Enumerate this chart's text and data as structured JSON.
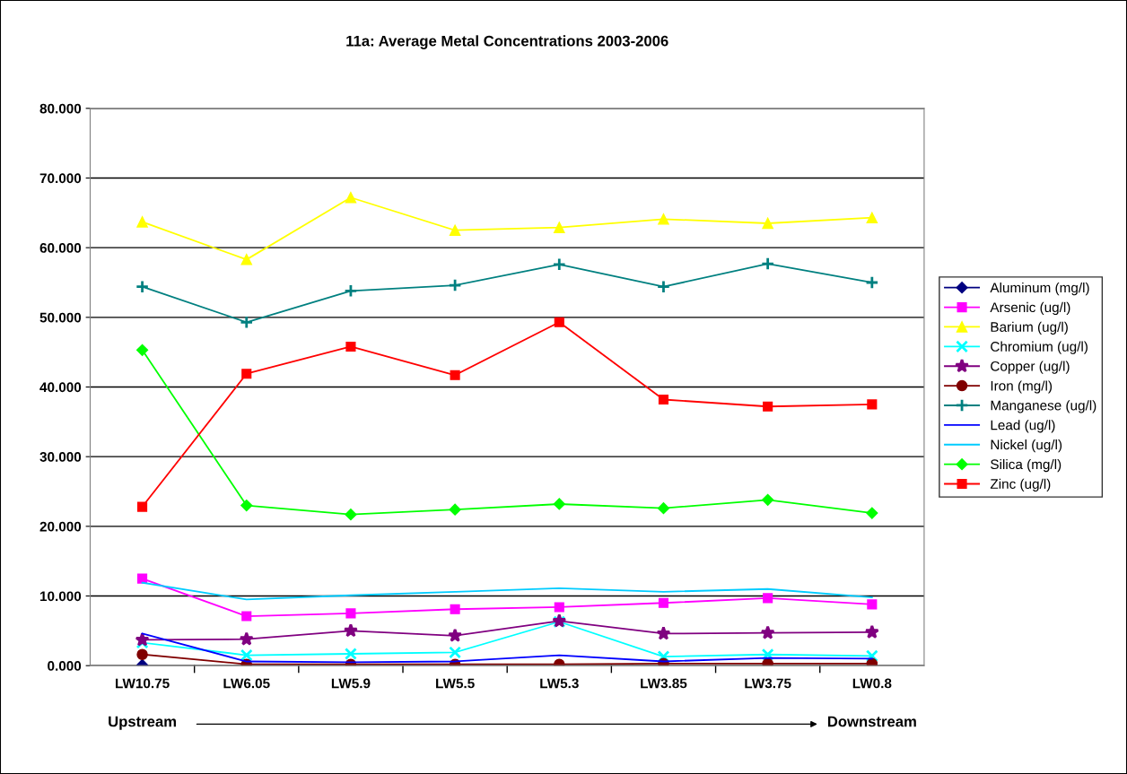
{
  "chart_data": {
    "type": "line",
    "title": "11a: Average Metal Concentrations 2003-2006",
    "categories": [
      "LW10.75",
      "LW6.05",
      "LW5.9",
      "LW5.5",
      "LW5.3",
      "LW3.85",
      "LW3.75",
      "LW0.8"
    ],
    "ylim": [
      0,
      80
    ],
    "yticks": [
      {
        "value": 0,
        "label": "0.000"
      },
      {
        "value": 10,
        "label": "10.000"
      },
      {
        "value": 20,
        "label": "20.000"
      },
      {
        "value": 30,
        "label": "30.000"
      },
      {
        "value": 40,
        "label": "40.000"
      },
      {
        "value": 50,
        "label": "50.000"
      },
      {
        "value": 60,
        "label": "60.000"
      },
      {
        "value": 70,
        "label": "70.000"
      },
      {
        "value": 80,
        "label": "80.000"
      }
    ],
    "grid": "y",
    "legend": "right",
    "annotations": [
      "Upstream",
      "Downstream"
    ],
    "series": [
      {
        "name": "Aluminum (mg/l)",
        "color": "#000080",
        "marker": "diamond",
        "values": [
          0.1,
          null,
          null,
          null,
          null,
          null,
          null,
          null
        ]
      },
      {
        "name": "Arsenic (ug/l)",
        "color": "#ff00ff",
        "marker": "square",
        "values": [
          12.5,
          7.1,
          7.5,
          8.1,
          8.4,
          9.0,
          9.7,
          8.8
        ]
      },
      {
        "name": "Barium (ug/l)",
        "color": "#ffff00",
        "marker": "triangle",
        "values": [
          63.7,
          58.3,
          67.2,
          62.5,
          62.9,
          64.1,
          63.5,
          64.3
        ]
      },
      {
        "name": "Chromium (ug/l)",
        "color": "#00ffff",
        "marker": "cross",
        "values": [
          3.3,
          1.5,
          1.7,
          1.9,
          6.3,
          1.3,
          1.6,
          1.4
        ]
      },
      {
        "name": "Copper (ug/l)",
        "color": "#800080",
        "marker": "star",
        "values": [
          3.7,
          3.8,
          5.0,
          4.3,
          6.4,
          4.6,
          4.7,
          4.8
        ]
      },
      {
        "name": "Iron (mg/l)",
        "color": "#800000",
        "marker": "circle",
        "values": [
          1.6,
          0.2,
          0.2,
          0.2,
          0.2,
          0.3,
          0.3,
          0.3
        ]
      },
      {
        "name": "Manganese (ug/l)",
        "color": "#008080",
        "marker": "plus",
        "values": [
          54.4,
          49.3,
          53.8,
          54.6,
          57.6,
          54.4,
          57.7,
          55.0
        ]
      },
      {
        "name": "Lead (ug/l)",
        "color": "#0000ff",
        "marker": "none",
        "values": [
          4.6,
          0.6,
          0.5,
          0.6,
          1.5,
          0.6,
          1.1,
          1.0
        ]
      },
      {
        "name": "Nickel (ug/l)",
        "color": "#00ccff",
        "marker": "none",
        "values": [
          11.9,
          9.5,
          10.1,
          10.6,
          11.1,
          10.6,
          11.0,
          9.8
        ]
      },
      {
        "name": "Silica (mg/l)",
        "color": "#00ff00",
        "marker": "diamond",
        "values": [
          45.3,
          23.0,
          21.7,
          22.4,
          23.2,
          22.6,
          23.8,
          21.9
        ]
      },
      {
        "name": "Zinc (ug/l)",
        "color": "#ff0000",
        "marker": "square",
        "values": [
          22.8,
          41.9,
          45.8,
          41.7,
          49.3,
          38.2,
          37.2,
          37.5
        ]
      }
    ]
  }
}
